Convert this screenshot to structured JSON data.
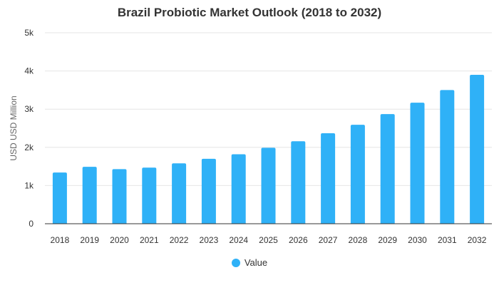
{
  "chart_data": {
    "type": "bar",
    "title": "Brazil Probiotic Market Outlook (2018 to 2032)",
    "xlabel": "",
    "ylabel": "USD USD Million",
    "categories": [
      "2018",
      "2019",
      "2020",
      "2021",
      "2022",
      "2023",
      "2024",
      "2025",
      "2026",
      "2027",
      "2028",
      "2029",
      "2030",
      "2031",
      "2032"
    ],
    "series": [
      {
        "name": "Value",
        "values": [
          1340,
          1490,
          1430,
          1470,
          1580,
          1700,
          1820,
          1990,
          2160,
          2370,
          2590,
          2870,
          3170,
          3500,
          3900
        ]
      }
    ],
    "ylim": [
      0,
      5000
    ],
    "yticks": [
      0,
      1000,
      2000,
      3000,
      4000,
      5000
    ],
    "ytick_labels": [
      "0",
      "1k",
      "2k",
      "3k",
      "4k",
      "5k"
    ],
    "grid": true,
    "legend_position": "bottom-center",
    "bar_color": "#2fb1f7"
  }
}
